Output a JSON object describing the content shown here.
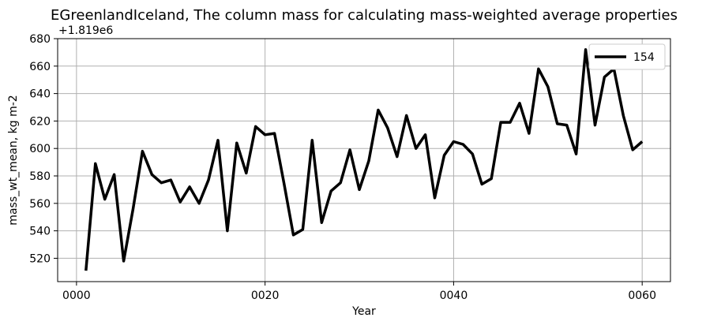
{
  "chart_data": {
    "type": "line",
    "title": "EGreenlandIceland, The column mass for calculating mass-weighted average properties",
    "xlabel": "Year",
    "ylabel": "mass_wt_mean, kg m-2",
    "y_offset_label": "+1.819e6",
    "xlim": [
      -2,
      63
    ],
    "ylim": [
      503,
      680
    ],
    "xticks": [
      0,
      20,
      40,
      60
    ],
    "xtick_labels": [
      "0000",
      "0020",
      "0040",
      "0060"
    ],
    "yticks": [
      520,
      540,
      560,
      580,
      600,
      620,
      640,
      660,
      680
    ],
    "ytick_labels": [
      "520",
      "540",
      "560",
      "580",
      "600",
      "620",
      "640",
      "660",
      "680"
    ],
    "grid": true,
    "legend_position": "top-right",
    "series": [
      {
        "name": "154",
        "color": "#000000",
        "x": [
          1,
          2,
          3,
          4,
          5,
          6,
          7,
          8,
          9,
          10,
          11,
          12,
          13,
          14,
          15,
          16,
          17,
          18,
          19,
          20,
          21,
          22,
          23,
          24,
          25,
          26,
          27,
          28,
          29,
          30,
          31,
          32,
          33,
          34,
          35,
          36,
          37,
          38,
          39,
          40,
          41,
          42,
          43,
          44,
          45,
          46,
          47,
          48,
          49,
          50,
          51,
          52,
          53,
          54,
          55,
          56,
          57,
          58,
          59,
          60
        ],
        "values": [
          511,
          589,
          563,
          581,
          518,
          556,
          598,
          581,
          575,
          577,
          561,
          572,
          560,
          577,
          606,
          540,
          604,
          582,
          616,
          610,
          611,
          575,
          537,
          541,
          606,
          546,
          569,
          575,
          599,
          570,
          591,
          628,
          615,
          594,
          624,
          600,
          610,
          564,
          595,
          605,
          603,
          596,
          574,
          578,
          619,
          619,
          633,
          611,
          658,
          645,
          618,
          617,
          596,
          672,
          617,
          652,
          658,
          624,
          599,
          605
        ]
      }
    ]
  }
}
